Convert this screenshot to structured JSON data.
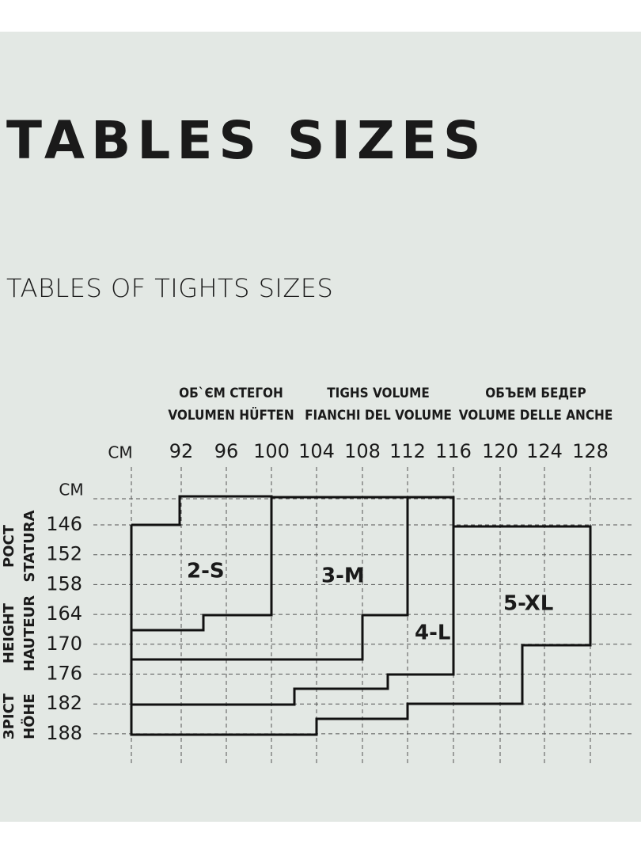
{
  "header": {
    "title": "TABLES SIZES",
    "subtitle": "TABLES OF TIGHTS SIZES"
  },
  "table": {
    "column_headers": [
      [
        "ОБ`ЄМ СТЕГОН",
        "VOLUMEN HÜFTEN"
      ],
      [
        "TIGHS VOLUME",
        "FIANCHI DEL VOLUME"
      ],
      [
        "ОБЪЕМ БЕДЕР",
        "VOLUME DELLE ANCHE"
      ]
    ],
    "x_unit": "CM",
    "x_ticks": [
      "92",
      "96",
      "100",
      "104",
      "108",
      "112",
      "116",
      "120",
      "124",
      "128"
    ],
    "y_unit": "CM",
    "y_ticks": [
      "146",
      "152",
      "158",
      "164",
      "170",
      "176",
      "182",
      "188"
    ],
    "row_headers": [
      [
        "РОСТ",
        "STATURA"
      ],
      [
        "HEIGHT",
        "HAUTEUR"
      ],
      [
        "ЗРІСТ",
        "HÖHE"
      ]
    ],
    "sizes": [
      "2-S",
      "3-M",
      "4-L",
      "5-XL"
    ]
  }
}
